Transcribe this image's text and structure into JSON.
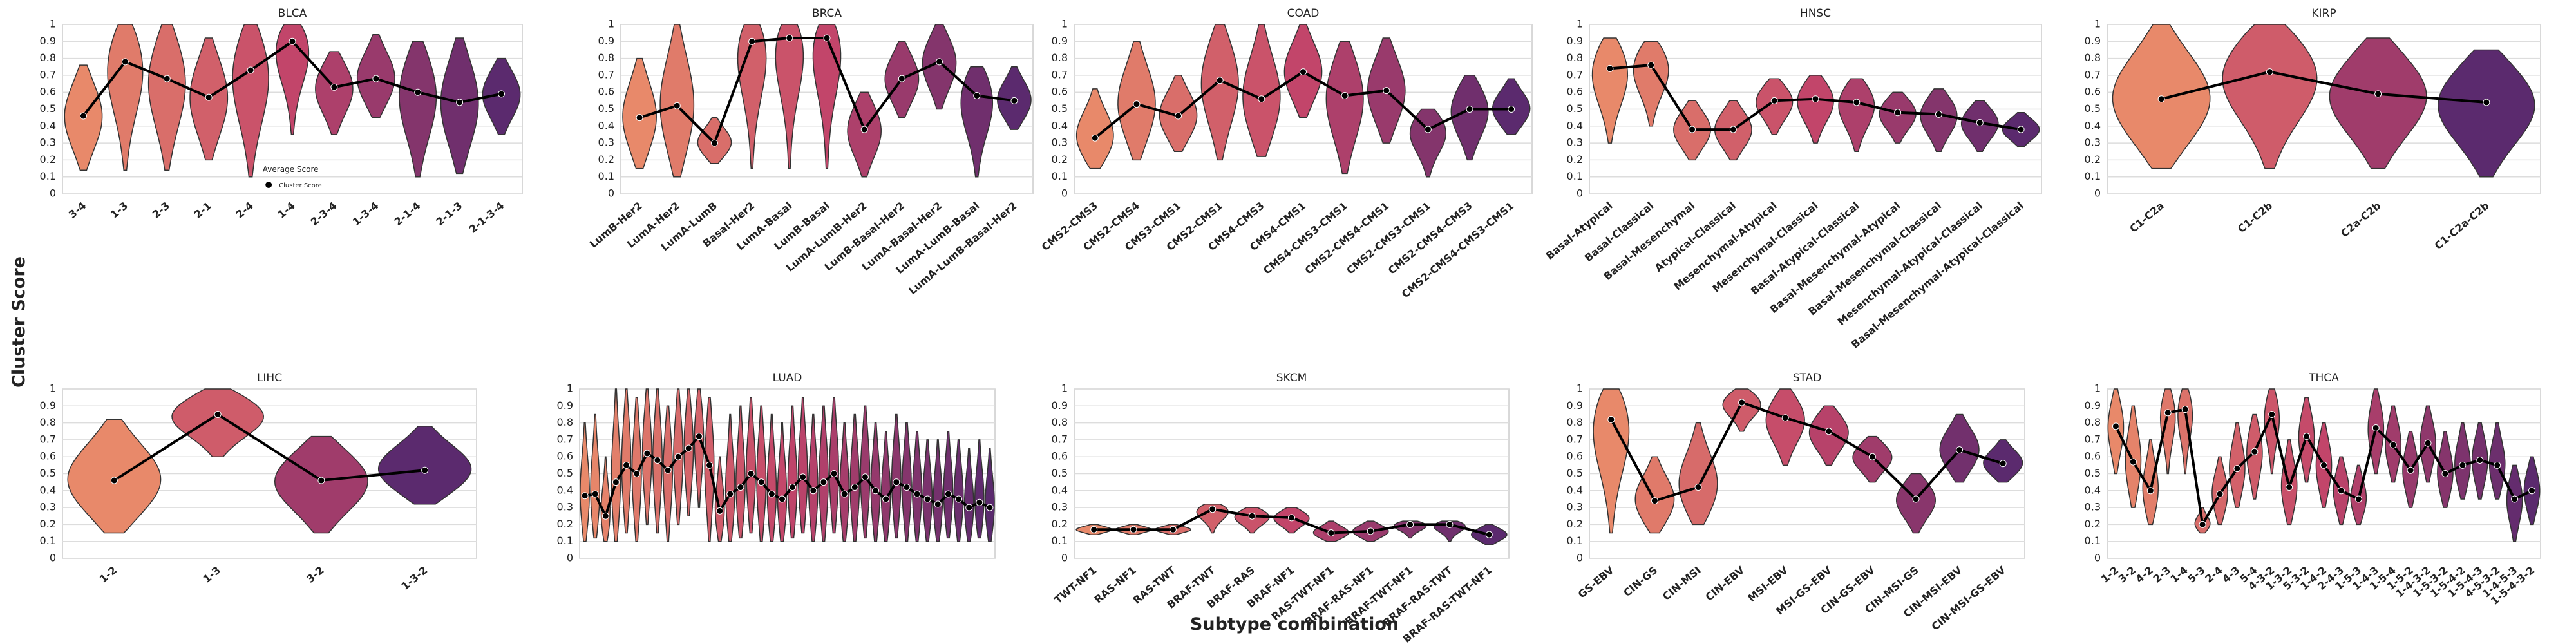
{
  "figure": {
    "ylabel": "Cluster Score",
    "xlabel": "Subtype combination"
  },
  "chart_data": [
    {
      "type": "violin",
      "title": "BLCA",
      "categories": [
        "3-4",
        "1-3",
        "2-3",
        "2-1",
        "2-4",
        "1-4",
        "2-3-4",
        "1-3-4",
        "2-1-4",
        "2-1-3",
        "2-1-3-4"
      ],
      "values": [
        0.46,
        0.78,
        0.68,
        0.57,
        0.73,
        0.9,
        0.63,
        0.68,
        0.6,
        0.54,
        0.59
      ],
      "mins": [
        0.14,
        0.14,
        0.14,
        0.2,
        0.1,
        0.35,
        0.35,
        0.45,
        0.1,
        0.12,
        0.35
      ],
      "maxs": [
        0.76,
        1,
        1,
        0.92,
        1,
        1,
        0.84,
        0.94,
        0.9,
        0.92,
        0.8
      ],
      "legend": {
        "title": "Average Score",
        "label": "Cluster Score"
      },
      "ylim": [
        0,
        1
      ],
      "yticks": [
        0,
        0.1,
        0.2,
        0.3,
        0.4,
        0.5,
        0.6,
        0.7,
        0.8,
        0.9,
        1
      ],
      "grid": true,
      "palette": [
        "#e8896a",
        "#c2456a",
        "#5b2a6e"
      ],
      "line_color": "#000000"
    },
    {
      "type": "violin",
      "title": "BRCA",
      "categories": [
        "LumB-Her2",
        "LumA-Her2",
        "LumA-LumB",
        "Basal-Her2",
        "LumA-Basal",
        "LumB-Basal",
        "LumA-LumB-Her2",
        "LumB-Basal-Her2",
        "LumA-Basal-Her2",
        "LumA-LumB-Basal",
        "LumA-LumB-Basal-Her2"
      ],
      "values": [
        0.45,
        0.52,
        0.3,
        0.9,
        0.92,
        0.92,
        0.38,
        0.68,
        0.78,
        0.58,
        0.55
      ],
      "mins": [
        0.15,
        0.1,
        0.18,
        0.15,
        0.15,
        0.15,
        0.1,
        0.45,
        0.5,
        0.1,
        0.38
      ],
      "maxs": [
        0.8,
        1,
        0.45,
        1,
        1,
        1,
        0.6,
        0.9,
        1,
        0.75,
        0.75
      ],
      "ylim": [
        0,
        1
      ],
      "yticks": [
        0,
        0.1,
        0.2,
        0.3,
        0.4,
        0.5,
        0.6,
        0.7,
        0.8,
        0.9,
        1
      ],
      "grid": true,
      "palette": [
        "#e8896a",
        "#c2456a",
        "#5b2a6e"
      ],
      "line_color": "#000000"
    },
    {
      "type": "violin",
      "title": "COAD",
      "categories": [
        "CMS2-CMS3",
        "CMS2-CMS4",
        "CMS3-CMS1",
        "CMS2-CMS1",
        "CMS4-CMS3",
        "CMS4-CMS1",
        "CMS4-CMS3-CMS1",
        "CMS2-CMS4-CMS1",
        "CMS2-CMS3-CMS1",
        "CMS2-CMS4-CMS3",
        "CMS2-CMS4-CMS3-CMS1"
      ],
      "values": [
        0.33,
        0.53,
        0.46,
        0.67,
        0.56,
        0.72,
        0.58,
        0.61,
        0.38,
        0.5,
        0.5
      ],
      "mins": [
        0.15,
        0.2,
        0.25,
        0.2,
        0.22,
        0.45,
        0.12,
        0.3,
        0.1,
        0.2,
        0.35
      ],
      "maxs": [
        0.62,
        0.9,
        0.7,
        1,
        1,
        1,
        0.9,
        0.92,
        0.5,
        0.7,
        0.68
      ],
      "ylim": [
        0,
        1
      ],
      "yticks": [
        0,
        0.1,
        0.2,
        0.3,
        0.4,
        0.5,
        0.6,
        0.7,
        0.8,
        0.9,
        1
      ],
      "grid": true,
      "palette": [
        "#e8896a",
        "#c2456a",
        "#5b2a6e"
      ],
      "line_color": "#000000"
    },
    {
      "type": "violin",
      "title": "HNSC",
      "categories": [
        "Basal-Atypical",
        "Basal-Classical",
        "Basal-Mesenchymal",
        "Atypical-Classical",
        "Mesenchymal-Atypical",
        "Mesenchymal-Classical",
        "Basal-Atypical-Classical",
        "Basal-Mesenchymal-Atypical",
        "Basal-Mesenchymal-Classical",
        "Mesenchymal-Atypical-Classical",
        "Basal-Mesenchymal-Atypical-Classical"
      ],
      "values": [
        0.74,
        0.76,
        0.38,
        0.38,
        0.55,
        0.56,
        0.54,
        0.48,
        0.47,
        0.42,
        0.38
      ],
      "mins": [
        0.3,
        0.4,
        0.2,
        0.2,
        0.35,
        0.3,
        0.25,
        0.3,
        0.25,
        0.25,
        0.28
      ],
      "maxs": [
        0.92,
        0.9,
        0.55,
        0.55,
        0.68,
        0.7,
        0.68,
        0.6,
        0.62,
        0.55,
        0.48
      ],
      "ylim": [
        0,
        1
      ],
      "yticks": [
        0,
        0.1,
        0.2,
        0.3,
        0.4,
        0.5,
        0.6,
        0.7,
        0.8,
        0.9,
        1
      ],
      "grid": true,
      "palette": [
        "#e8896a",
        "#c2456a",
        "#5b2a6e"
      ],
      "line_color": "#000000"
    },
    {
      "type": "violin",
      "title": "KIRP",
      "categories": [
        "C1-C2a",
        "C1-C2b",
        "C2a-C2b",
        "C1-C2a-C2b"
      ],
      "values": [
        0.56,
        0.72,
        0.59,
        0.54
      ],
      "mins": [
        0.15,
        0.15,
        0.15,
        0.1
      ],
      "maxs": [
        1,
        1,
        0.92,
        0.85
      ],
      "ylim": [
        0,
        1
      ],
      "yticks": [
        0,
        0.1,
        0.2,
        0.3,
        0.4,
        0.5,
        0.6,
        0.7,
        0.8,
        0.9,
        1
      ],
      "grid": true,
      "palette": [
        "#e8896a",
        "#c2456a",
        "#5b2a6e"
      ],
      "line_color": "#000000"
    },
    {
      "type": "violin",
      "title": "LIHC",
      "categories": [
        "1-2",
        "1-3",
        "3-2",
        "1-3-2"
      ],
      "values": [
        0.46,
        0.85,
        0.46,
        0.52
      ],
      "mins": [
        0.15,
        0.6,
        0.15,
        0.32
      ],
      "maxs": [
        0.82,
        1,
        0.72,
        0.78
      ],
      "ylim": [
        0,
        1
      ],
      "yticks": [
        0,
        0.1,
        0.2,
        0.3,
        0.4,
        0.5,
        0.6,
        0.7,
        0.8,
        0.9,
        1
      ],
      "grid": true,
      "palette": [
        "#e8896a",
        "#c2456a",
        "#5b2a6e"
      ],
      "line_color": "#000000"
    },
    {
      "type": "violin",
      "title": "LUAD",
      "categories": [
        null,
        null,
        null,
        null,
        null,
        null,
        null,
        null,
        null,
        null,
        null,
        null,
        null,
        null,
        null,
        null,
        null,
        null,
        null,
        null,
        null,
        null,
        null,
        null,
        null,
        null,
        null,
        null,
        null,
        null,
        null,
        null,
        null,
        null,
        null,
        null,
        null,
        null,
        null,
        null
      ],
      "values": [
        0.37,
        0.38,
        0.25,
        0.45,
        0.55,
        0.5,
        0.62,
        0.58,
        0.52,
        0.6,
        0.65,
        0.72,
        0.55,
        0.28,
        0.38,
        0.42,
        0.5,
        0.45,
        0.38,
        0.35,
        0.42,
        0.48,
        0.4,
        0.45,
        0.5,
        0.38,
        0.42,
        0.48,
        0.4,
        0.35,
        0.45,
        0.42,
        0.38,
        0.35,
        0.32,
        0.38,
        0.35,
        0.3,
        0.33,
        0.3
      ],
      "mins": [
        0.1,
        0.12,
        0.1,
        0.1,
        0.15,
        0.1,
        0.2,
        0.15,
        0.1,
        0.2,
        0.25,
        0.3,
        0.1,
        0.1,
        0.1,
        0.12,
        0.15,
        0.1,
        0.1,
        0.1,
        0.12,
        0.15,
        0.1,
        0.1,
        0.15,
        0.1,
        0.1,
        0.12,
        0.1,
        0.1,
        0.12,
        0.1,
        0.1,
        0.1,
        0.1,
        0.12,
        0.1,
        0.1,
        0.12,
        0.1
      ],
      "maxs": [
        0.8,
        0.85,
        0.6,
        1,
        1,
        0.95,
        1,
        1,
        0.9,
        1,
        1,
        1,
        0.95,
        0.6,
        0.85,
        0.9,
        0.95,
        0.9,
        0.85,
        0.8,
        0.9,
        0.95,
        0.85,
        0.9,
        0.95,
        0.8,
        0.85,
        0.9,
        0.8,
        0.75,
        0.85,
        0.8,
        0.75,
        0.7,
        0.7,
        0.75,
        0.7,
        0.65,
        0.7,
        0.65
      ],
      "ylim": [
        0,
        1
      ],
      "yticks": [
        0,
        0.1,
        0.2,
        0.3,
        0.4,
        0.5,
        0.6,
        0.7,
        0.8,
        0.9,
        1
      ],
      "grid": true,
      "palette": [
        "#e8896a",
        "#c2456a",
        "#5b2a6e"
      ],
      "line_color": "#000000"
    },
    {
      "type": "violin",
      "title": "SKCM",
      "categories": [
        "TWT-NF1",
        "RAS-NF1",
        "RAS-TWT",
        "BRAF-TWT",
        "BRAF-RAS",
        "BRAF-NF1",
        "RAS-TWT-NF1",
        "BRAF-RAS-NF1",
        "BRAF-TWT-NF1",
        "BRAF-RAS-TWT",
        "BRAF-RAS-TWT-NF1"
      ],
      "values": [
        0.17,
        0.17,
        0.17,
        0.29,
        0.25,
        0.24,
        0.15,
        0.16,
        0.2,
        0.2,
        0.14
      ],
      "mins": [
        0.14,
        0.14,
        0.14,
        0.15,
        0.15,
        0.15,
        0.1,
        0.1,
        0.12,
        0.1,
        0.08
      ],
      "maxs": [
        0.2,
        0.2,
        0.2,
        0.32,
        0.3,
        0.3,
        0.22,
        0.22,
        0.22,
        0.22,
        0.2
      ],
      "ylim": [
        0,
        1
      ],
      "yticks": [
        0,
        0.1,
        0.2,
        0.3,
        0.4,
        0.5,
        0.6,
        0.7,
        0.8,
        0.9,
        1
      ],
      "grid": true,
      "palette": [
        "#e8896a",
        "#c2456a",
        "#5b2a6e"
      ],
      "line_color": "#000000"
    },
    {
      "type": "violin",
      "title": "STAD",
      "categories": [
        "GS-EBV",
        "CIN-GS",
        "CIN-MSI",
        "CIN-EBV",
        "MSI-EBV",
        "MSI-GS-EBV",
        "CIN-GS-EBV",
        "CIN-MSI-GS",
        "CIN-MSI-EBV",
        "CIN-MSI-GS-EBV"
      ],
      "values": [
        0.82,
        0.34,
        0.42,
        0.92,
        0.83,
        0.75,
        0.6,
        0.35,
        0.64,
        0.56
      ],
      "mins": [
        0.15,
        0.15,
        0.2,
        0.75,
        0.55,
        0.55,
        0.45,
        0.15,
        0.45,
        0.45
      ],
      "maxs": [
        1,
        0.6,
        0.8,
        1,
        1,
        0.9,
        0.72,
        0.5,
        0.85,
        0.7
      ],
      "ylim": [
        0,
        1
      ],
      "yticks": [
        0,
        0.1,
        0.2,
        0.3,
        0.4,
        0.5,
        0.6,
        0.7,
        0.8,
        0.9,
        1
      ],
      "grid": true,
      "palette": [
        "#e8896a",
        "#c2456a",
        "#5b2a6e"
      ],
      "line_color": "#000000"
    },
    {
      "type": "violin",
      "title": "THCA",
      "categories": [
        "1-2",
        "3-2",
        "4-2",
        "2-3",
        "1-4",
        "5-3",
        "2-4",
        "4-3",
        "5-4",
        "4-3-2",
        "1-3-2",
        "5-3-2",
        "1-4-2",
        "2-4-3",
        "1-5-3",
        "1-4-3",
        "1-5-4",
        "1-5-2",
        "1-4-3-2",
        "1-5-3-2",
        "1-5-4-2",
        "1-5-4-3",
        "4-5-3-2",
        "1-4-5-3",
        "1-5-4-3-2"
      ],
      "values": [
        0.78,
        0.57,
        0.4,
        0.86,
        0.88,
        0.2,
        0.38,
        0.53,
        0.63,
        0.85,
        0.42,
        0.72,
        0.55,
        0.4,
        0.35,
        0.77,
        0.67,
        0.52,
        0.68,
        0.5,
        0.55,
        0.58,
        0.55,
        0.35,
        0.4
      ],
      "mins": [
        0.5,
        0.3,
        0.2,
        0.5,
        0.5,
        0.15,
        0.2,
        0.3,
        0.35,
        0.5,
        0.2,
        0.45,
        0.3,
        0.2,
        0.2,
        0.5,
        0.45,
        0.3,
        0.45,
        0.3,
        0.35,
        0.35,
        0.35,
        0.1,
        0.2
      ],
      "maxs": [
        1,
        0.9,
        0.7,
        1,
        1,
        0.3,
        0.6,
        0.8,
        0.85,
        1,
        0.7,
        0.95,
        0.8,
        0.6,
        0.55,
        1,
        0.9,
        0.75,
        0.9,
        0.75,
        0.8,
        0.8,
        0.8,
        0.55,
        0.6
      ],
      "ylim": [
        0,
        1
      ],
      "yticks": [
        0,
        0.1,
        0.2,
        0.3,
        0.4,
        0.5,
        0.6,
        0.7,
        0.8,
        0.9,
        1
      ],
      "grid": true,
      "palette": [
        "#e8896a",
        "#c2456a",
        "#5b2a6e"
      ],
      "line_color": "#000000"
    }
  ]
}
